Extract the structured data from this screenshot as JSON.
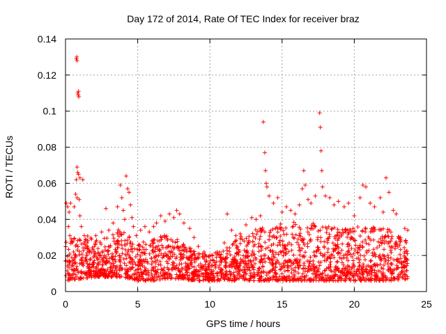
{
  "chart_data": {
    "type": "scatter",
    "title": "Day 172 of 2014, Rate Of TEC Index for receiver braz",
    "xlabel": "GPS time / hours",
    "ylabel": "ROTI / TECUs",
    "xlim": [
      0,
      25
    ],
    "ylim": [
      0,
      0.14
    ],
    "xticks": [
      0,
      5,
      10,
      15,
      20,
      25
    ],
    "yticks": [
      0,
      0.02,
      0.04,
      0.06,
      0.08,
      0.1,
      0.12,
      0.14
    ],
    "xtick_labels": [
      "0",
      "5",
      "10",
      "15",
      "20",
      "25"
    ],
    "ytick_labels": [
      "0",
      "0.02",
      "0.04",
      "0.06",
      "0.08",
      "0.1",
      "0.12",
      "0.14"
    ],
    "grid": true,
    "marker": "+",
    "color": "#ff0000",
    "series": [
      {
        "name": "ROTI",
        "points": [
          [
            0.05,
            0.049
          ],
          [
            0.15,
            0.047
          ],
          [
            0.25,
            0.044
          ],
          [
            0.35,
            0.049
          ],
          [
            0.2,
            0.036
          ],
          [
            0.3,
            0.031
          ],
          [
            0.45,
            0.027
          ],
          [
            0.55,
            0.022
          ],
          [
            0.6,
            0.047
          ],
          [
            0.75,
            0.129
          ],
          [
            0.78,
            0.13
          ],
          [
            0.8,
            0.128
          ],
          [
            0.85,
            0.11
          ],
          [
            0.88,
            0.109
          ],
          [
            0.9,
            0.111
          ],
          [
            0.92,
            0.108
          ],
          [
            0.8,
            0.069
          ],
          [
            0.85,
            0.066
          ],
          [
            0.9,
            0.065
          ],
          [
            0.75,
            0.062
          ],
          [
            1.2,
            0.062
          ],
          [
            1.0,
            0.063
          ],
          [
            0.7,
            0.054
          ],
          [
            0.8,
            0.052
          ],
          [
            0.95,
            0.051
          ],
          [
            1.0,
            0.042
          ],
          [
            1.1,
            0.036
          ],
          [
            1.3,
            0.031
          ],
          [
            1.5,
            0.027
          ],
          [
            1.8,
            0.029
          ],
          [
            2.1,
            0.031
          ],
          [
            2.5,
            0.033
          ],
          [
            2.8,
            0.046
          ],
          [
            3.0,
            0.034
          ],
          [
            3.3,
            0.038
          ],
          [
            3.6,
            0.047
          ],
          [
            3.8,
            0.059
          ],
          [
            3.9,
            0.052
          ],
          [
            4.0,
            0.045
          ],
          [
            4.1,
            0.04
          ],
          [
            4.2,
            0.064
          ],
          [
            4.3,
            0.057
          ],
          [
            4.4,
            0.055
          ],
          [
            4.5,
            0.048
          ],
          [
            4.6,
            0.041
          ],
          [
            4.7,
            0.036
          ],
          [
            4.9,
            0.031
          ],
          [
            5.2,
            0.034
          ],
          [
            5.5,
            0.036
          ],
          [
            5.8,
            0.033
          ],
          [
            6.1,
            0.036
          ],
          [
            6.3,
            0.038
          ],
          [
            6.6,
            0.042
          ],
          [
            6.9,
            0.039
          ],
          [
            7.2,
            0.043
          ],
          [
            7.5,
            0.041
          ],
          [
            7.7,
            0.045
          ],
          [
            7.9,
            0.043
          ],
          [
            8.2,
            0.038
          ],
          [
            8.6,
            0.035
          ],
          [
            8.9,
            0.03
          ],
          [
            9.2,
            0.025
          ],
          [
            9.6,
            0.022
          ],
          [
            10.0,
            0.02
          ],
          [
            10.5,
            0.022
          ],
          [
            11.0,
            0.027
          ],
          [
            11.2,
            0.043
          ],
          [
            11.5,
            0.034
          ],
          [
            11.8,
            0.031
          ],
          [
            12.1,
            0.032
          ],
          [
            12.5,
            0.037
          ],
          [
            12.9,
            0.041
          ],
          [
            13.2,
            0.04
          ],
          [
            13.5,
            0.042
          ],
          [
            13.7,
            0.094
          ],
          [
            13.8,
            0.077
          ],
          [
            13.85,
            0.067
          ],
          [
            13.9,
            0.06
          ],
          [
            13.95,
            0.058
          ],
          [
            14.1,
            0.053
          ],
          [
            14.4,
            0.049
          ],
          [
            14.7,
            0.052
          ],
          [
            15.0,
            0.044
          ],
          [
            15.3,
            0.047
          ],
          [
            15.6,
            0.045
          ],
          [
            15.9,
            0.043
          ],
          [
            16.2,
            0.048
          ],
          [
            16.4,
            0.057
          ],
          [
            16.5,
            0.067
          ],
          [
            16.6,
            0.059
          ],
          [
            16.8,
            0.051
          ],
          [
            17.0,
            0.049
          ],
          [
            17.3,
            0.053
          ],
          [
            17.6,
            0.099
          ],
          [
            17.65,
            0.091
          ],
          [
            17.7,
            0.078
          ],
          [
            17.75,
            0.067
          ],
          [
            17.8,
            0.058
          ],
          [
            18.0,
            0.053
          ],
          [
            18.3,
            0.052
          ],
          [
            18.6,
            0.048
          ],
          [
            18.9,
            0.05
          ],
          [
            19.3,
            0.047
          ],
          [
            19.6,
            0.049
          ],
          [
            20.0,
            0.042
          ],
          [
            20.4,
            0.052
          ],
          [
            20.6,
            0.059
          ],
          [
            20.8,
            0.058
          ],
          [
            21.1,
            0.049
          ],
          [
            21.4,
            0.047
          ],
          [
            21.8,
            0.052
          ],
          [
            22.0,
            0.044
          ],
          [
            22.2,
            0.063
          ],
          [
            22.4,
            0.055
          ],
          [
            22.7,
            0.045
          ],
          [
            22.9,
            0.043
          ],
          [
            23.2,
            0.03
          ],
          [
            23.5,
            0.035
          ],
          [
            23.7,
            0.034
          ]
        ],
        "envelope": {
          "description": "dense band of ROTI values plotted as red '+' markers across the day",
          "x": [
            0,
            1,
            2,
            3,
            4,
            5,
            6,
            7,
            8,
            9,
            10,
            11,
            12,
            13,
            14,
            15,
            16,
            17,
            18,
            19,
            20,
            21,
            22,
            23,
            23.7
          ],
          "lower": [
            0.006,
            0.007,
            0.008,
            0.008,
            0.008,
            0.006,
            0.006,
            0.007,
            0.007,
            0.006,
            0.006,
            0.006,
            0.006,
            0.006,
            0.006,
            0.006,
            0.006,
            0.006,
            0.006,
            0.006,
            0.006,
            0.006,
            0.006,
            0.006,
            0.007
          ],
          "upper": [
            0.03,
            0.033,
            0.03,
            0.032,
            0.036,
            0.026,
            0.03,
            0.032,
            0.028,
            0.022,
            0.02,
            0.024,
            0.03,
            0.034,
            0.036,
            0.038,
            0.04,
            0.038,
            0.038,
            0.036,
            0.036,
            0.036,
            0.036,
            0.032,
            0.03
          ],
          "density_per_hour": 90
        }
      }
    ]
  }
}
